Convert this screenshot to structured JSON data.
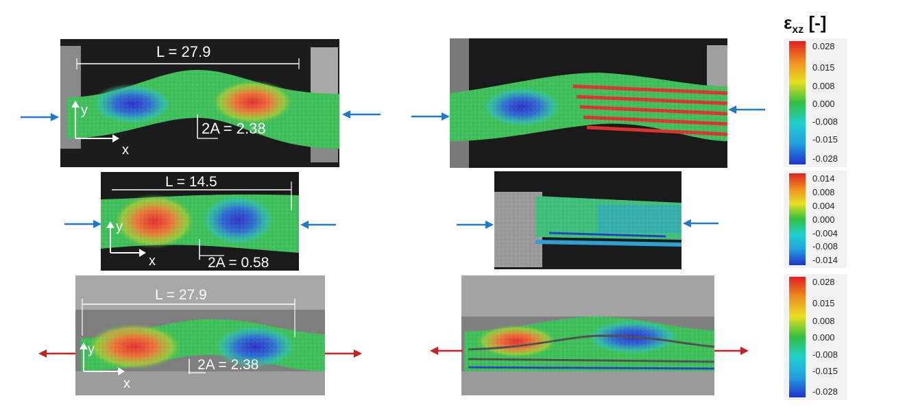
{
  "colorbar_title": {
    "symbol": "ε",
    "subscript": "xz",
    "unit": "[-]"
  },
  "panels": [
    {
      "id": "r1-left",
      "length_label": "L = 27.9",
      "amplitude_label": "2A = 2.38",
      "axis_y": "y",
      "axis_x": "x",
      "load": "compression"
    },
    {
      "id": "r1-right",
      "load": "compression"
    },
    {
      "id": "r2-left",
      "length_label": "L = 14.5",
      "amplitude_label": "2A = 0.58",
      "axis_y": "y",
      "axis_x": "x",
      "load": "compression"
    },
    {
      "id": "r2-right",
      "load": "compression"
    },
    {
      "id": "r3-left",
      "length_label": "L = 27.9",
      "amplitude_label": "2A = 2.38",
      "axis_y": "y",
      "axis_x": "x",
      "load": "tension"
    },
    {
      "id": "r3-right",
      "load": "tension"
    }
  ],
  "scales": [
    {
      "ticks": [
        "0.028",
        "0.015",
        "0.008",
        "0.000",
        "-0.008",
        "-0.015",
        "-0.028"
      ]
    },
    {
      "ticks": [
        "0.014",
        "0.008",
        "0.004",
        "0.000",
        "-0.004",
        "-0.008",
        "-0.014"
      ]
    },
    {
      "ticks": [
        "0.028",
        "0.015",
        "0.008",
        "0.000",
        "-0.008",
        "-0.015",
        "-0.028"
      ]
    }
  ],
  "colors": {
    "compression_arrow": "#1f78c8",
    "tension_arrow": "#c8201c",
    "strain_high": "#e02020",
    "strain_zero": "#30c040",
    "strain_low": "#2030d0"
  }
}
